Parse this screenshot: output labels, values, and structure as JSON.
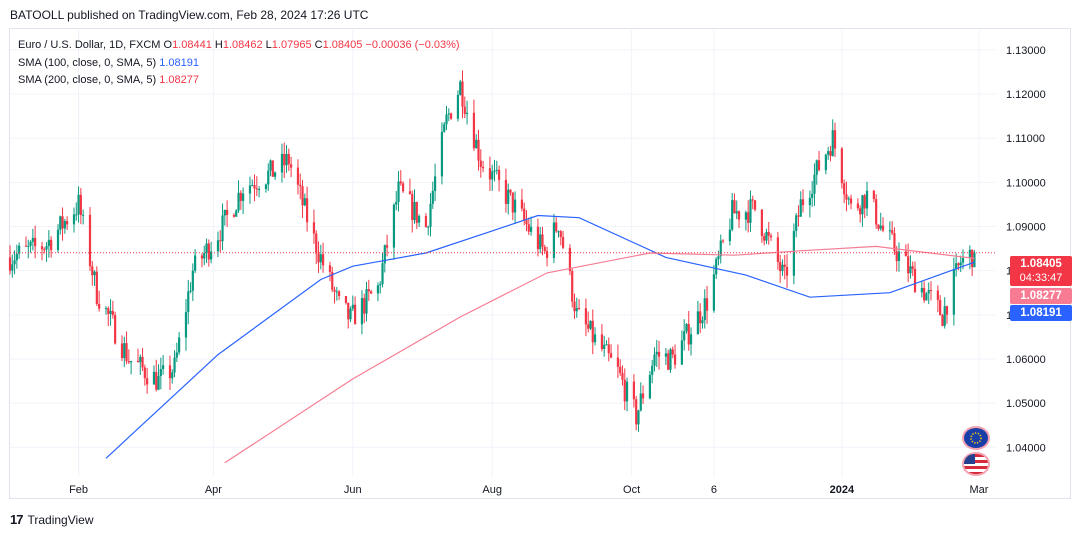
{
  "header": {
    "publisher": "BATOOLL published on TradingView.com, Feb 28, 2024 17:26 UTC"
  },
  "legend": {
    "symbol": "Euro / U.S. Dollar, 1D, FXCM",
    "o_label": "O",
    "o": "1.08441",
    "h_label": "H",
    "h": "1.08462",
    "l_label": "L",
    "l": "1.07965",
    "c_label": "C",
    "c": "1.08405",
    "change": "−0.00036 (−0.03%)",
    "sma100_label": "SMA (100, close, 0, SMA, 5)",
    "sma100_value": "1.08191",
    "sma200_label": "SMA (200, close, 0, SMA, 5)",
    "sma200_value": "1.08277"
  },
  "price_badges": {
    "last": "1.08405",
    "countdown": "04:33:47",
    "sma200": "1.08277",
    "sma100": "1.08191"
  },
  "footer": {
    "brand": "TradingView"
  },
  "colors": {
    "up": "#089981",
    "down": "#f23645",
    "sma100": "#2962ff",
    "sma200": "#f77c93",
    "grid": "#f0f3fa"
  },
  "chart_data": {
    "type": "candlestick",
    "symbol": "EURUSD",
    "timeframe": "1D",
    "y_ticks": [
      1.04,
      1.05,
      1.06,
      1.07,
      1.08,
      1.09,
      1.1,
      1.11,
      1.12,
      1.13
    ],
    "y_tick_labels": [
      "1.04000",
      "1.05000",
      "1.06000",
      "1.07000",
      "1.08000",
      "1.09000",
      "1.10000",
      "1.11000",
      "1.12000",
      "1.13000"
    ],
    "ylim": [
      1.0335,
      1.1345
    ],
    "x_ticks": [
      "Feb",
      "Apr",
      "Jun",
      "Aug",
      "Oct",
      "6",
      "2024",
      "Mar"
    ],
    "grid": true,
    "last_price": 1.08405,
    "close_path": [
      [
        "2023-01-02",
        1.083
      ],
      [
        "2023-01-18",
        1.086
      ],
      [
        "2023-02-01",
        1.095
      ],
      [
        "2023-02-09",
        1.075
      ],
      [
        "2023-02-23",
        1.06
      ],
      [
        "2023-03-08",
        1.055
      ],
      [
        "2023-03-15",
        1.058
      ],
      [
        "2023-03-23",
        1.08
      ],
      [
        "2023-04-05",
        1.09
      ],
      [
        "2023-04-14",
        1.099
      ],
      [
        "2023-04-26",
        1.102
      ],
      [
        "2023-05-04",
        1.105
      ],
      [
        "2023-05-15",
        1.087
      ],
      [
        "2023-05-26",
        1.072
      ],
      [
        "2023-05-31",
        1.069
      ],
      [
        "2023-06-12",
        1.076
      ],
      [
        "2023-06-21",
        1.098
      ],
      [
        "2023-07-03",
        1.09
      ],
      [
        "2023-07-12",
        1.114
      ],
      [
        "2023-07-18",
        1.122
      ],
      [
        "2023-07-27",
        1.105
      ],
      [
        "2023-08-10",
        1.095
      ],
      [
        "2023-08-24",
        1.084
      ],
      [
        "2023-08-30",
        1.091
      ],
      [
        "2023-09-07",
        1.07
      ],
      [
        "2023-09-25",
        1.057
      ],
      [
        "2023-10-03",
        1.047
      ],
      [
        "2023-10-11",
        1.061
      ],
      [
        "2023-10-19",
        1.06
      ],
      [
        "2023-11-03",
        1.073
      ],
      [
        "2023-11-14",
        1.093
      ],
      [
        "2023-11-24",
        1.094
      ],
      [
        "2023-12-07",
        1.078
      ],
      [
        "2023-12-14",
        1.095
      ],
      [
        "2023-12-28",
        1.11
      ],
      [
        "2024-01-05",
        1.094
      ],
      [
        "2024-01-12",
        1.097
      ],
      [
        "2024-01-19",
        1.089
      ],
      [
        "2024-02-02",
        1.078
      ],
      [
        "2024-02-14",
        1.07
      ],
      [
        "2024-02-22",
        1.082
      ],
      [
        "2024-02-28",
        1.08405
      ]
    ],
    "series": [
      {
        "name": "SMA (100, close, 0, SMA, 5)",
        "last": 1.08191,
        "values": [
          [
            "2023-02-13",
            1.0375
          ],
          [
            "2023-04-03",
            1.061
          ],
          [
            "2023-05-18",
            1.078
          ],
          [
            "2023-06-01",
            1.081
          ],
          [
            "2023-07-03",
            1.084
          ],
          [
            "2023-08-01",
            1.089
          ],
          [
            "2023-08-21",
            1.0925
          ],
          [
            "2023-09-08",
            1.092
          ],
          [
            "2023-10-16",
            1.083
          ],
          [
            "2023-11-20",
            1.079
          ],
          [
            "2023-12-18",
            1.074
          ],
          [
            "2024-01-22",
            1.075
          ],
          [
            "2024-02-28",
            1.08191
          ]
        ]
      },
      {
        "name": "SMA (200, close, 0, SMA, 5)",
        "last": 1.08277,
        "values": [
          [
            "2023-04-06",
            1.0365
          ],
          [
            "2023-06-01",
            1.0555
          ],
          [
            "2023-07-18",
            1.0695
          ],
          [
            "2023-08-25",
            1.0795
          ],
          [
            "2023-10-09",
            1.084
          ],
          [
            "2023-11-15",
            1.0835
          ],
          [
            "2023-12-14",
            1.0845
          ],
          [
            "2024-01-16",
            1.0855
          ],
          [
            "2024-02-28",
            1.08277
          ]
        ]
      }
    ]
  }
}
